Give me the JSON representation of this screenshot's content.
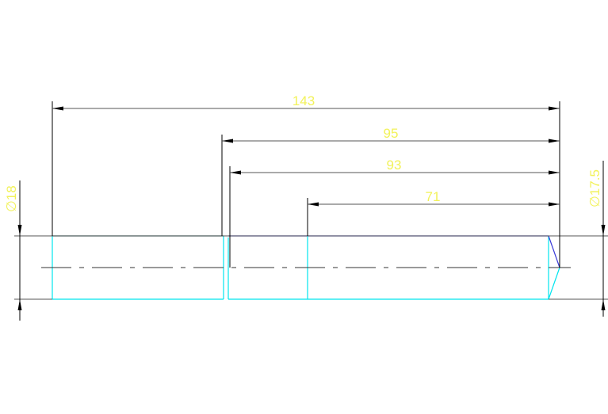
{
  "drawing": {
    "dimensions": {
      "overall": "143",
      "d95": "95",
      "d93": "93",
      "d71": "71",
      "dia_left": "∅18",
      "dia_right": "∅17.5"
    },
    "colors": {
      "dimension_text": "#f2f25a",
      "part_outline": "#00e5ee",
      "chamfer_edge": "#3a3ad8",
      "dimension_lines": "#000000"
    }
  }
}
